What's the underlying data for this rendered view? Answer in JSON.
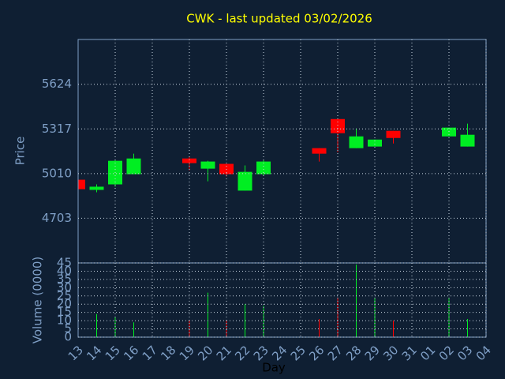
{
  "chart_data": {
    "type": "candlestick",
    "title": "CWK - last updated 03/02/2026",
    "x_label": "Day",
    "y_label": "Price",
    "volume_label": "Volume (0000)",
    "categories": [
      "13",
      "14",
      "15",
      "16",
      "17",
      "18",
      "19",
      "20",
      "21",
      "22",
      "23",
      "24",
      "25",
      "26",
      "27",
      "28",
      "29",
      "30",
      "31",
      "01",
      "02",
      "03",
      "04"
    ],
    "open": [
      4968,
      4898,
      4936,
      5006,
      null,
      null,
      5114,
      5044,
      5077,
      4893,
      5006,
      null,
      null,
      5185,
      5385,
      5185,
      5196,
      5304,
      null,
      null,
      5266,
      5196,
      null
    ],
    "high": [
      4968,
      4936,
      5104,
      5147,
      null,
      null,
      5125,
      5098,
      5077,
      5066,
      5104,
      null,
      null,
      5185,
      5385,
      5320,
      5244,
      5304,
      null,
      null,
      5326,
      5353,
      null
    ],
    "low": [
      4903,
      4882,
      4920,
      5006,
      null,
      null,
      5033,
      4957,
      4990,
      4893,
      4995,
      null,
      null,
      5093,
      5158,
      5185,
      5196,
      5217,
      null,
      null,
      5266,
      5196,
      null
    ],
    "close": [
      4903,
      4920,
      5098,
      5114,
      null,
      null,
      5082,
      5093,
      5006,
      5022,
      5093,
      null,
      null,
      5147,
      5288,
      5266,
      5244,
      5255,
      null,
      null,
      5326,
      5277,
      null
    ],
    "volume": [
      null,
      14,
      12,
      9,
      null,
      null,
      10,
      27,
      10,
      20,
      19,
      null,
      null,
      11,
      24,
      44,
      24,
      10,
      null,
      null,
      24,
      11,
      null
    ],
    "up_color": "#00ee22",
    "down_color": "#ff0000",
    "ylim": [
      4396,
      5932
    ],
    "yticks": [
      4703,
      5010,
      5317,
      5624
    ],
    "volume_ylim": [
      0,
      45
    ],
    "volume_yticks": [
      0,
      5,
      10,
      15,
      20,
      25,
      30,
      35,
      40,
      45
    ],
    "grid": true
  }
}
